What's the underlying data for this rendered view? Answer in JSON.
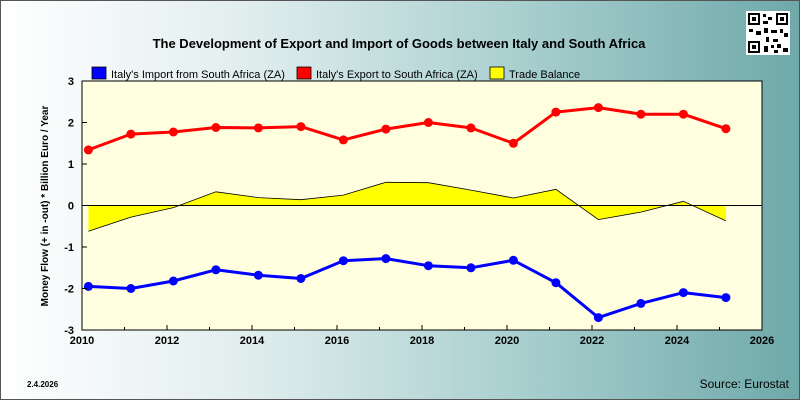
{
  "date_stamp": "2.4.2026",
  "source": "Source: Eurostat",
  "chart_data": {
    "type": "line",
    "title": "The Development of Export and Import of Goods between Italy and South Africa",
    "ylabel": "Money Flow (+ in -out) * Billion Euro / Year",
    "xlabel": "",
    "xlim": [
      2010,
      2026
    ],
    "ylim": [
      -3,
      3
    ],
    "xticks": [
      2010,
      2012,
      2014,
      2016,
      2018,
      2020,
      2022,
      2024,
      2026
    ],
    "yticks": [
      -3,
      -2,
      -1,
      0,
      1,
      2,
      3
    ],
    "grid": false,
    "legend_position": "top",
    "x": [
      2010.15,
      2011.15,
      2012.15,
      2013.15,
      2014.15,
      2015.15,
      2016.15,
      2017.15,
      2018.15,
      2019.15,
      2020.15,
      2021.15,
      2022.15,
      2023.15,
      2024.15,
      2025.15
    ],
    "series": [
      {
        "name": "Italy's Import from South Africa (ZA)",
        "color": "#0000ff",
        "values": [
          -1.95,
          -2.0,
          -1.82,
          -1.55,
          -1.68,
          -1.76,
          -1.33,
          -1.28,
          -1.45,
          -1.5,
          -1.32,
          -1.86,
          -2.7,
          -2.36,
          -2.1,
          -2.22
        ]
      },
      {
        "name": "Italy's Export to South Africa (ZA)",
        "color": "#ff0000",
        "values": [
          1.34,
          1.72,
          1.77,
          1.88,
          1.87,
          1.9,
          1.58,
          1.84,
          2.0,
          1.87,
          1.5,
          2.25,
          2.36,
          2.2,
          2.2,
          1.85
        ]
      },
      {
        "name": "Trade Balance",
        "color": "#ffff00",
        "values": [
          -0.62,
          -0.28,
          -0.05,
          0.33,
          0.19,
          0.14,
          0.25,
          0.56,
          0.55,
          0.37,
          0.18,
          0.39,
          -0.34,
          -0.16,
          0.1,
          -0.37
        ]
      }
    ]
  }
}
